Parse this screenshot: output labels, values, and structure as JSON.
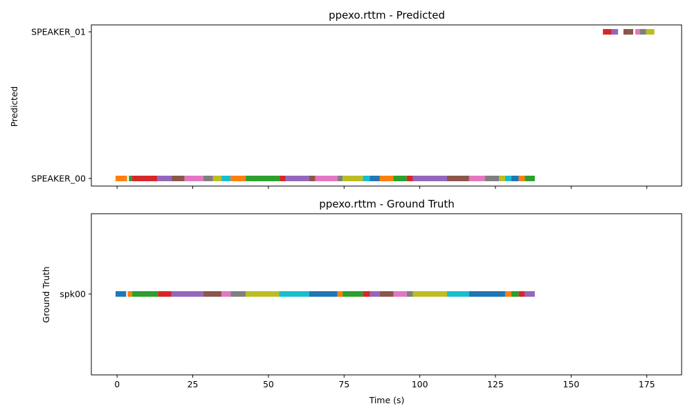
{
  "chart_data": [
    {
      "type": "timeline",
      "title": "ppexo.rttm - Predicted",
      "ylabel": "Predicted",
      "xlabel": "",
      "xlim": [
        -8.5,
        186.5
      ],
      "x_ticks": [
        0,
        25,
        50,
        75,
        100,
        125,
        150,
        175
      ],
      "show_x_tick_labels": false,
      "grid": false,
      "rows": [
        "SPEAKER_01",
        "SPEAKER_00"
      ],
      "segments": [
        {
          "row": "SPEAKER_00",
          "start": -0.5,
          "end": 3.3,
          "color": "#ff7f0e"
        },
        {
          "row": "SPEAKER_00",
          "start": 3.9,
          "end": 5.0,
          "color": "#2ca02c"
        },
        {
          "row": "SPEAKER_00",
          "start": 5.0,
          "end": 13.3,
          "color": "#d62728"
        },
        {
          "row": "SPEAKER_00",
          "start": 13.3,
          "end": 18.0,
          "color": "#9467bd"
        },
        {
          "row": "SPEAKER_00",
          "start": 18.0,
          "end": 22.3,
          "color": "#8c564b"
        },
        {
          "row": "SPEAKER_00",
          "start": 22.3,
          "end": 28.5,
          "color": "#e377c2"
        },
        {
          "row": "SPEAKER_00",
          "start": 28.5,
          "end": 31.7,
          "color": "#7f7f7f"
        },
        {
          "row": "SPEAKER_00",
          "start": 31.7,
          "end": 34.5,
          "color": "#bcbd22"
        },
        {
          "row": "SPEAKER_00",
          "start": 34.5,
          "end": 37.5,
          "color": "#17becf"
        },
        {
          "row": "SPEAKER_00",
          "start": 37.5,
          "end": 42.5,
          "color": "#ff7f0e"
        },
        {
          "row": "SPEAKER_00",
          "start": 42.5,
          "end": 53.7,
          "color": "#2ca02c"
        },
        {
          "row": "SPEAKER_00",
          "start": 53.7,
          "end": 55.7,
          "color": "#d62728"
        },
        {
          "row": "SPEAKER_00",
          "start": 55.7,
          "end": 63.5,
          "color": "#9467bd"
        },
        {
          "row": "SPEAKER_00",
          "start": 63.5,
          "end": 65.5,
          "color": "#8c564b"
        },
        {
          "row": "SPEAKER_00",
          "start": 65.5,
          "end": 72.8,
          "color": "#e377c2"
        },
        {
          "row": "SPEAKER_00",
          "start": 72.8,
          "end": 74.5,
          "color": "#7f7f7f"
        },
        {
          "row": "SPEAKER_00",
          "start": 74.5,
          "end": 81.2,
          "color": "#bcbd22"
        },
        {
          "row": "SPEAKER_00",
          "start": 81.2,
          "end": 83.5,
          "color": "#17becf"
        },
        {
          "row": "SPEAKER_00",
          "start": 83.5,
          "end": 86.8,
          "color": "#1f77b4"
        },
        {
          "row": "SPEAKER_00",
          "start": 86.8,
          "end": 91.3,
          "color": "#ff7f0e"
        },
        {
          "row": "SPEAKER_00",
          "start": 91.3,
          "end": 95.7,
          "color": "#2ca02c"
        },
        {
          "row": "SPEAKER_00",
          "start": 95.7,
          "end": 97.7,
          "color": "#d62728"
        },
        {
          "row": "SPEAKER_00",
          "start": 97.7,
          "end": 109.0,
          "color": "#9467bd"
        },
        {
          "row": "SPEAKER_00",
          "start": 109.0,
          "end": 116.3,
          "color": "#8c564b"
        },
        {
          "row": "SPEAKER_00",
          "start": 116.3,
          "end": 121.5,
          "color": "#e377c2"
        },
        {
          "row": "SPEAKER_00",
          "start": 121.5,
          "end": 126.2,
          "color": "#7f7f7f"
        },
        {
          "row": "SPEAKER_00",
          "start": 126.2,
          "end": 128.2,
          "color": "#bcbd22"
        },
        {
          "row": "SPEAKER_00",
          "start": 128.2,
          "end": 130.2,
          "color": "#17becf"
        },
        {
          "row": "SPEAKER_00",
          "start": 130.2,
          "end": 132.7,
          "color": "#1f77b4"
        },
        {
          "row": "SPEAKER_00",
          "start": 132.7,
          "end": 134.7,
          "color": "#ff7f0e"
        },
        {
          "row": "SPEAKER_00",
          "start": 134.7,
          "end": 138.0,
          "color": "#2ca02c"
        },
        {
          "row": "SPEAKER_01",
          "start": 160.5,
          "end": 163.3,
          "color": "#d62728"
        },
        {
          "row": "SPEAKER_01",
          "start": 163.3,
          "end": 165.5,
          "color": "#9467bd"
        },
        {
          "row": "SPEAKER_01",
          "start": 167.3,
          "end": 170.5,
          "color": "#8c564b"
        },
        {
          "row": "SPEAKER_01",
          "start": 171.2,
          "end": 172.7,
          "color": "#e377c2"
        },
        {
          "row": "SPEAKER_01",
          "start": 172.7,
          "end": 174.8,
          "color": "#7f7f7f"
        },
        {
          "row": "SPEAKER_01",
          "start": 174.8,
          "end": 177.5,
          "color": "#bcbd22"
        }
      ]
    },
    {
      "type": "timeline",
      "title": "ppexo.rttm - Ground Truth",
      "ylabel": "Ground Truth",
      "xlabel": "Time (s)",
      "xlim": [
        -8.5,
        186.5
      ],
      "x_ticks": [
        0,
        25,
        50,
        75,
        100,
        125,
        150,
        175
      ],
      "show_x_tick_labels": true,
      "grid": false,
      "rows": [
        "spk00"
      ],
      "segments": [
        {
          "row": "spk00",
          "start": -0.5,
          "end": 3.0,
          "color": "#1f77b4"
        },
        {
          "row": "spk00",
          "start": 3.5,
          "end": 5.0,
          "color": "#ff7f0e"
        },
        {
          "row": "spk00",
          "start": 5.0,
          "end": 13.5,
          "color": "#2ca02c"
        },
        {
          "row": "spk00",
          "start": 13.5,
          "end": 18.0,
          "color": "#d62728"
        },
        {
          "row": "spk00",
          "start": 18.0,
          "end": 28.5,
          "color": "#9467bd"
        },
        {
          "row": "spk00",
          "start": 28.5,
          "end": 34.5,
          "color": "#8c564b"
        },
        {
          "row": "spk00",
          "start": 34.5,
          "end": 37.5,
          "color": "#e377c2"
        },
        {
          "row": "spk00",
          "start": 37.5,
          "end": 42.5,
          "color": "#7f7f7f"
        },
        {
          "row": "spk00",
          "start": 42.5,
          "end": 53.5,
          "color": "#bcbd22"
        },
        {
          "row": "spk00",
          "start": 53.5,
          "end": 63.5,
          "color": "#17becf"
        },
        {
          "row": "spk00",
          "start": 63.5,
          "end": 72.8,
          "color": "#1f77b4"
        },
        {
          "row": "spk00",
          "start": 72.8,
          "end": 74.5,
          "color": "#ff7f0e"
        },
        {
          "row": "spk00",
          "start": 74.5,
          "end": 81.2,
          "color": "#2ca02c"
        },
        {
          "row": "spk00",
          "start": 81.2,
          "end": 83.5,
          "color": "#d62728"
        },
        {
          "row": "spk00",
          "start": 83.5,
          "end": 86.8,
          "color": "#9467bd"
        },
        {
          "row": "spk00",
          "start": 86.8,
          "end": 91.3,
          "color": "#8c564b"
        },
        {
          "row": "spk00",
          "start": 91.3,
          "end": 95.7,
          "color": "#e377c2"
        },
        {
          "row": "spk00",
          "start": 95.7,
          "end": 97.7,
          "color": "#7f7f7f"
        },
        {
          "row": "spk00",
          "start": 97.7,
          "end": 109.0,
          "color": "#bcbd22"
        },
        {
          "row": "spk00",
          "start": 109.0,
          "end": 116.3,
          "color": "#17becf"
        },
        {
          "row": "spk00",
          "start": 116.3,
          "end": 128.2,
          "color": "#1f77b4"
        },
        {
          "row": "spk00",
          "start": 128.2,
          "end": 130.2,
          "color": "#ff7f0e"
        },
        {
          "row": "spk00",
          "start": 130.2,
          "end": 132.7,
          "color": "#2ca02c"
        },
        {
          "row": "spk00",
          "start": 132.7,
          "end": 134.7,
          "color": "#d62728"
        },
        {
          "row": "spk00",
          "start": 134.7,
          "end": 138.0,
          "color": "#9467bd"
        }
      ]
    }
  ]
}
